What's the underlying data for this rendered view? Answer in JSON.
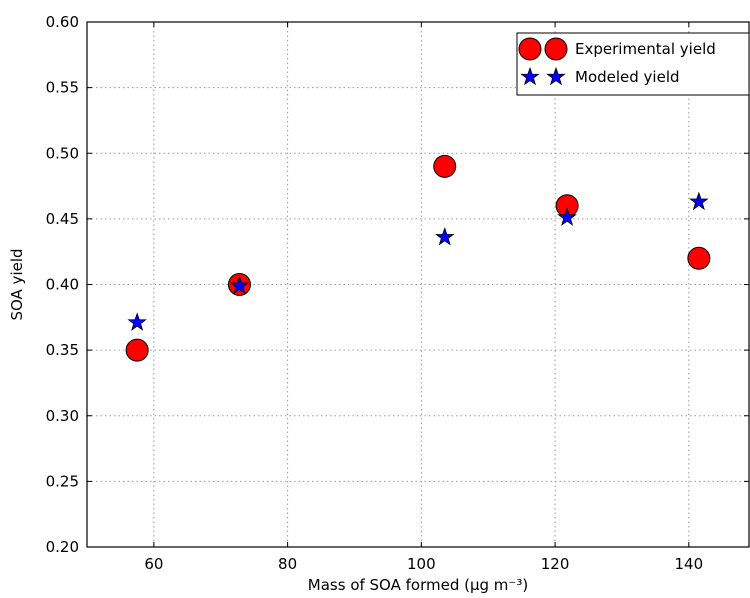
{
  "chart_data": {
    "type": "scatter",
    "title": "",
    "xlabel": "Mass of SOA formed (μg m⁻³)",
    "ylabel": "SOA yield",
    "xlim": [
      50,
      149
    ],
    "ylim": [
      0.2,
      0.6
    ],
    "xticks": [
      "60",
      "80",
      "100",
      "120",
      "140"
    ],
    "yticks": [
      "0.20",
      "0.25",
      "0.30",
      "0.35",
      "0.40",
      "0.45",
      "0.50",
      "0.55",
      "0.60"
    ],
    "grid": true,
    "legend_position": "top-right",
    "series": [
      {
        "name": "Experimental yield",
        "marker": "circle",
        "color": "#ff0000",
        "x": [
          57.5,
          72.8,
          103.5,
          121.8,
          141.5
        ],
        "y": [
          0.35,
          0.4,
          0.49,
          0.46,
          0.42
        ]
      },
      {
        "name": "Modeled yield",
        "marker": "star",
        "color": "#0000ff",
        "x": [
          57.5,
          72.8,
          103.5,
          121.8,
          141.5
        ],
        "y": [
          0.371,
          0.399,
          0.436,
          0.451,
          0.463
        ]
      }
    ]
  }
}
